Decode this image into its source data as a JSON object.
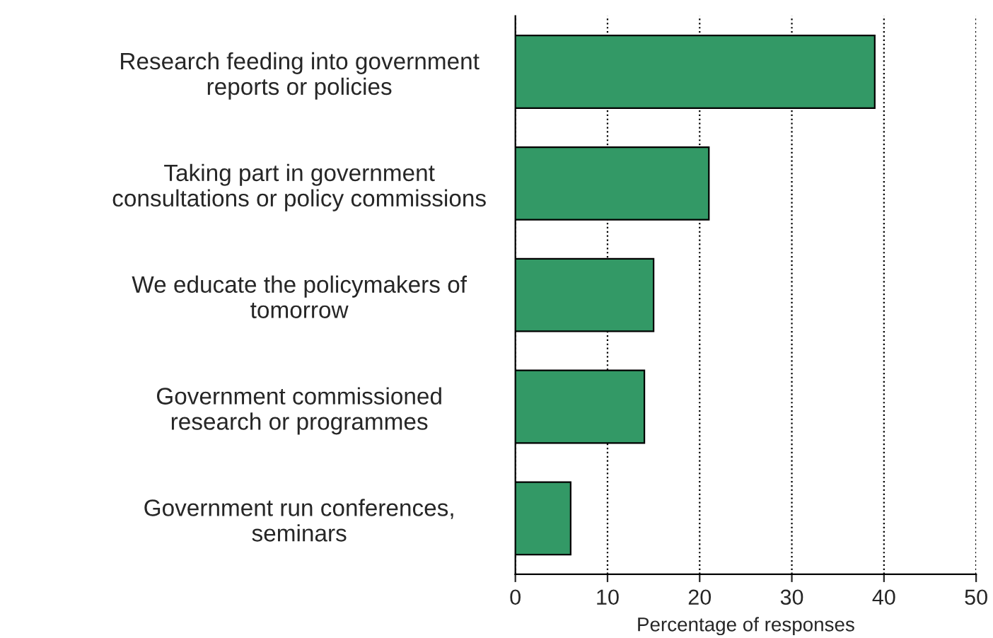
{
  "chart_data": {
    "type": "bar",
    "orientation": "horizontal",
    "categories": [
      "Research feeding into government\nreports or policies",
      "Taking part in government\nconsultations or policy commissions",
      "We educate the policymakers of\ntomorrow",
      "Government commissioned\nresearch or programmes",
      "Government run conferences,\nseminars"
    ],
    "values": [
      39,
      21,
      15,
      14,
      6
    ],
    "color": "#339966",
    "xlabel": "Percentage of responses",
    "xlim": [
      0,
      50
    ],
    "xticks": [
      0,
      10,
      20,
      30,
      40,
      50
    ],
    "grid": "x"
  }
}
